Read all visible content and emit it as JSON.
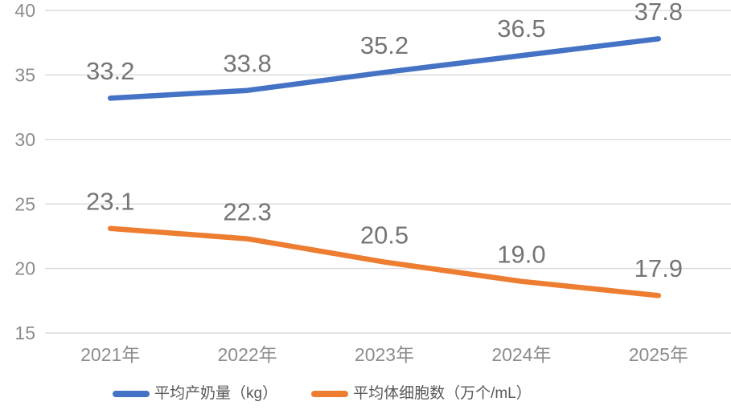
{
  "chart_data": {
    "type": "line",
    "categories": [
      "2021年",
      "2022年",
      "2023年",
      "2024年",
      "2025年"
    ],
    "series": [
      {
        "name": "平均产奶量（kg）",
        "values": [
          33.2,
          33.8,
          35.2,
          36.5,
          37.8
        ],
        "color": "#4472C4"
      },
      {
        "name": "平均体细胞数（万个/mL）",
        "values": [
          23.1,
          22.3,
          20.5,
          19.0,
          17.9
        ],
        "color": "#ED7D31"
      }
    ],
    "title": "",
    "xlabel": "",
    "ylabel": "",
    "ylim": [
      15,
      40
    ],
    "yticks": [
      40,
      35,
      30,
      25,
      20,
      15
    ],
    "grid": true,
    "data_labels": true,
    "data_label_decimals": 1,
    "legend_position": "bottom"
  },
  "colors": {
    "background": "#FFFFFF",
    "gridline": "#DCDCDC",
    "tick_label": "#8C8C8C",
    "data_label": "#757575",
    "legend_label": "#595959"
  }
}
